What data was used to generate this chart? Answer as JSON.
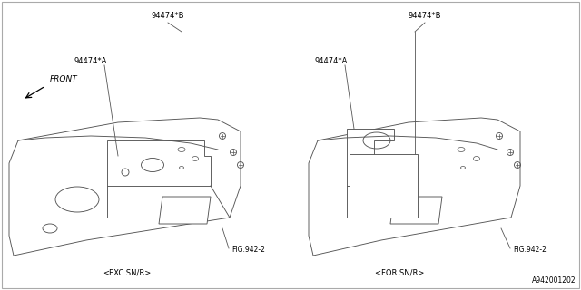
{
  "bg_color": "#ffffff",
  "line_color": "#555555",
  "text_color": "#000000",
  "fig_width": 6.4,
  "fig_height": 3.2,
  "dpi": 100,
  "label_94474B_left": "94474*B",
  "label_94474A_left": "94474*A",
  "label_94474B_right": "94474*B",
  "label_94474A_right": "94474*A",
  "label_fig942_left": "FIG.942-2",
  "label_fig942_right": "FIG.942-2",
  "label_exc": "<EXC.SN/R>",
  "label_for": "<FOR SN/R>",
  "label_front": "FRONT",
  "label_bottom_right": "A942001202"
}
